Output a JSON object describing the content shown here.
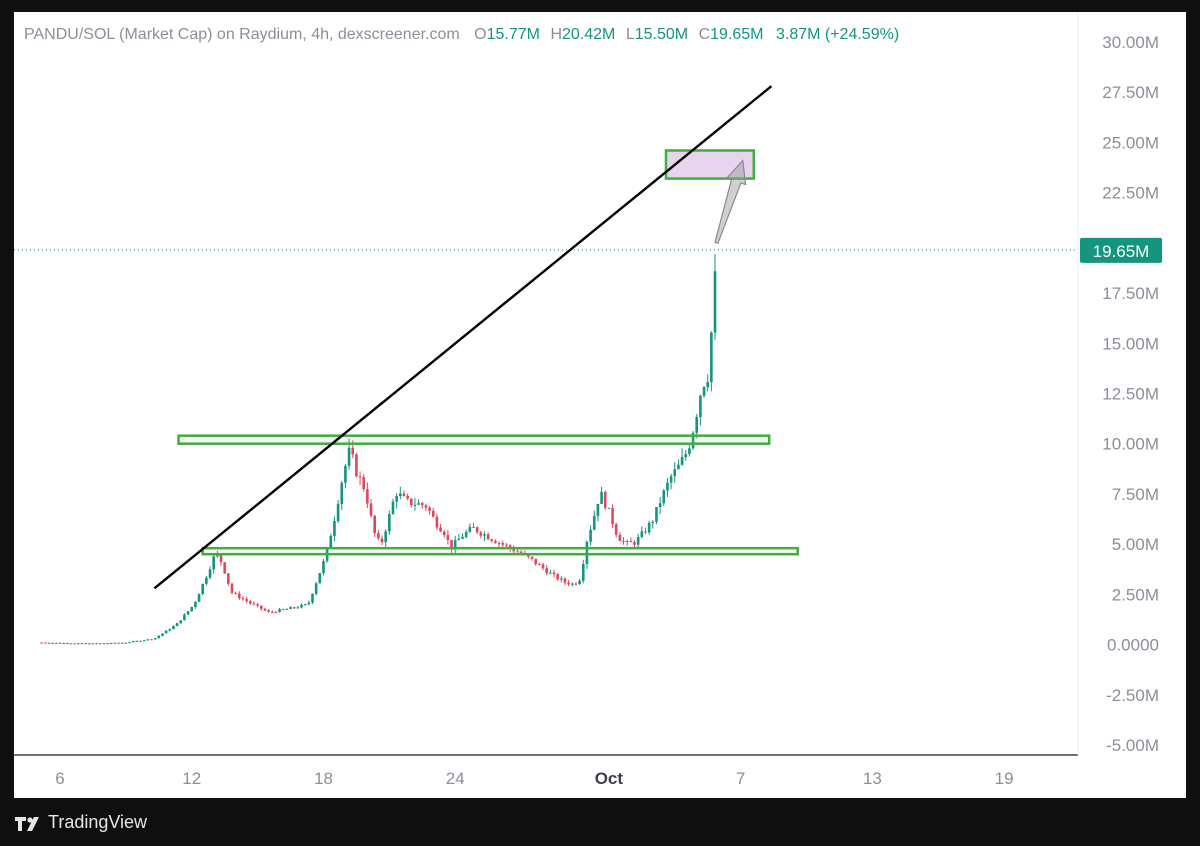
{
  "header": {
    "symbol_text": "PANDU/SOL (Market Cap) on Raydium, 4h, dexscreener.com",
    "open_label": "O",
    "open_value": "15.77M",
    "high_label": "H",
    "high_value": "20.42M",
    "low_label": "L",
    "low_value": "15.50M",
    "close_label": "C",
    "close_value": "19.65M",
    "change_value": "3.87M (+24.59%)"
  },
  "brand": {
    "name": "TradingView"
  },
  "colors": {
    "up": "#14957f",
    "down": "#e0485a",
    "zone": "#3fae3f",
    "target_fill": "#e8d4ee",
    "trendline": "#000000",
    "axis_text": "#8b8f99"
  },
  "chart_data": {
    "type": "candlestick",
    "title": "PANDU/SOL (Market Cap) on Raydium, 4h, dexscreener.com",
    "y_unit": "market cap (SOL-pair, M)",
    "ylim": [
      -5.0,
      30.0
    ],
    "yticks": [
      -5,
      -2.5,
      0,
      2.5,
      5,
      7.5,
      10,
      12.5,
      15,
      17.5,
      20,
      22.5,
      25,
      27.5,
      30
    ],
    "ytick_labels": [
      "-5.00M",
      "-2.50M",
      "0.0000",
      "2.50M",
      "5.00M",
      "7.50M",
      "10.00M",
      "12.50M",
      "15.00M",
      "17.50M",
      "20.00M",
      "22.50M",
      "25.00M",
      "27.50M",
      "30.00M"
    ],
    "xlim_day_index": [
      0,
      45
    ],
    "xticks": [
      {
        "day_index": 0,
        "label": "6"
      },
      {
        "day_index": 6,
        "label": "12"
      },
      {
        "day_index": 12,
        "label": "18"
      },
      {
        "day_index": 18,
        "label": "24"
      },
      {
        "day_index": 25,
        "label": "Oct"
      },
      {
        "day_index": 31,
        "label": "7"
      },
      {
        "day_index": 37,
        "label": "13"
      },
      {
        "day_index": 43,
        "label": "19"
      }
    ],
    "grid": false,
    "last_price": 19.65,
    "last_price_label": "19.65M",
    "path_close": [
      [
        -1.0,
        0.1
      ],
      [
        1.5,
        0.05
      ],
      [
        3.0,
        0.1
      ],
      [
        4.3,
        0.3
      ],
      [
        5.3,
        1.0
      ],
      [
        6.1,
        2.0
      ],
      [
        6.7,
        3.5
      ],
      [
        7.1,
        4.6
      ],
      [
        7.4,
        4.0
      ],
      [
        7.8,
        2.6
      ],
      [
        8.6,
        2.1
      ],
      [
        9.5,
        1.6
      ],
      [
        10.5,
        1.8
      ],
      [
        11.3,
        2.0
      ],
      [
        11.7,
        3.2
      ],
      [
        12.1,
        4.4
      ],
      [
        12.5,
        6.3
      ],
      [
        12.9,
        8.5
      ],
      [
        13.2,
        9.7
      ],
      [
        13.5,
        8.6
      ],
      [
        13.9,
        7.7
      ],
      [
        14.3,
        5.6
      ],
      [
        14.6,
        4.9
      ],
      [
        15.0,
        6.4
      ],
      [
        15.3,
        7.6
      ],
      [
        15.8,
        7.1
      ],
      [
        16.3,
        7.0
      ],
      [
        16.7,
        6.9
      ],
      [
        17.1,
        6.1
      ],
      [
        17.5,
        5.6
      ],
      [
        17.8,
        4.8
      ],
      [
        18.3,
        5.4
      ],
      [
        18.8,
        5.8
      ],
      [
        19.3,
        5.5
      ],
      [
        19.8,
        5.2
      ],
      [
        20.3,
        4.9
      ],
      [
        20.9,
        4.6
      ],
      [
        21.5,
        4.2
      ],
      [
        22.0,
        3.8
      ],
      [
        22.5,
        3.4
      ],
      [
        23.0,
        3.1
      ],
      [
        23.4,
        3.0
      ],
      [
        23.7,
        3.3
      ],
      [
        24.0,
        5.2
      ],
      [
        24.3,
        6.3
      ],
      [
        24.6,
        7.6
      ],
      [
        25.0,
        6.6
      ],
      [
        25.4,
        5.4
      ],
      [
        25.8,
        5.0
      ],
      [
        26.2,
        5.1
      ],
      [
        26.6,
        5.6
      ],
      [
        27.0,
        6.2
      ],
      [
        27.4,
        7.3
      ],
      [
        27.8,
        8.3
      ],
      [
        28.2,
        8.9
      ],
      [
        28.6,
        9.7
      ],
      [
        28.9,
        11.0
      ],
      [
        29.2,
        12.7
      ],
      [
        29.5,
        13.2
      ],
      [
        29.7,
        16.0
      ],
      [
        29.9,
        19.65
      ]
    ],
    "annotations": {
      "trendline": {
        "from": {
          "day_index": 4.3,
          "value": 2.8
        },
        "to": {
          "day_index": 32.4,
          "value": 27.8
        }
      },
      "resistance_zone": {
        "from_day_index": 5.4,
        "to_day_index": 32.3,
        "low": 10.0,
        "high": 10.4
      },
      "support_zone": {
        "from_day_index": 6.5,
        "to_day_index": 33.6,
        "low": 4.5,
        "high": 4.8
      },
      "target_box": {
        "from_day_index": 27.6,
        "to_day_index": 31.6,
        "low": 23.2,
        "high": 24.6
      },
      "projection_arrow": {
        "from": {
          "day_index": 29.9,
          "value": 20.0
        },
        "to": {
          "day_index": 31.1,
          "value": 24.1
        }
      }
    }
  }
}
